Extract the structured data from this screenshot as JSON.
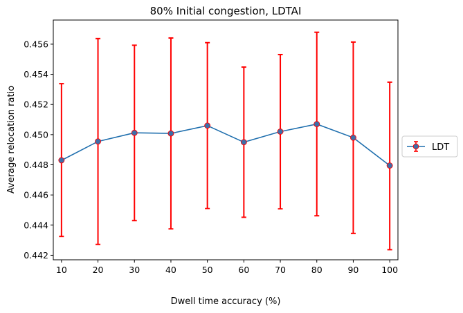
{
  "chart_data": {
    "type": "line",
    "title": "80% Initial congestion, LDTAI",
    "xlabel": "Dwell time accuracy (%)",
    "ylabel": "Average relocation ratio",
    "x": [
      10,
      20,
      30,
      40,
      50,
      60,
      70,
      80,
      90,
      100
    ],
    "xlim": [
      7.75,
      102.25
    ],
    "ylim": [
      0.4417,
      0.4576
    ],
    "xticks": [
      "10",
      "20",
      "30",
      "40",
      "50",
      "60",
      "70",
      "80",
      "90",
      "100"
    ],
    "yticks": [
      "0.442",
      "0.444",
      "0.446",
      "0.448",
      "0.450",
      "0.452",
      "0.454",
      "0.456"
    ],
    "grid": false,
    "legend_position": "right-outside",
    "series": [
      {
        "name": "LDT",
        "values": [
          0.4483,
          0.44955,
          0.45012,
          0.45008,
          0.4506,
          0.4495,
          0.4502,
          0.4507,
          0.4498,
          0.44795
        ],
        "error_low": [
          0.44325,
          0.44272,
          0.4443,
          0.44375,
          0.4451,
          0.44452,
          0.44508,
          0.44462,
          0.44345,
          0.44237
        ],
        "error_high": [
          0.45338,
          0.45637,
          0.45593,
          0.45641,
          0.4561,
          0.45448,
          0.45531,
          0.45679,
          0.45614,
          0.45348
        ],
        "line_color": "#1f6fae",
        "marker_color": "#3e6ea8",
        "error_color": "#ff0000"
      }
    ]
  }
}
